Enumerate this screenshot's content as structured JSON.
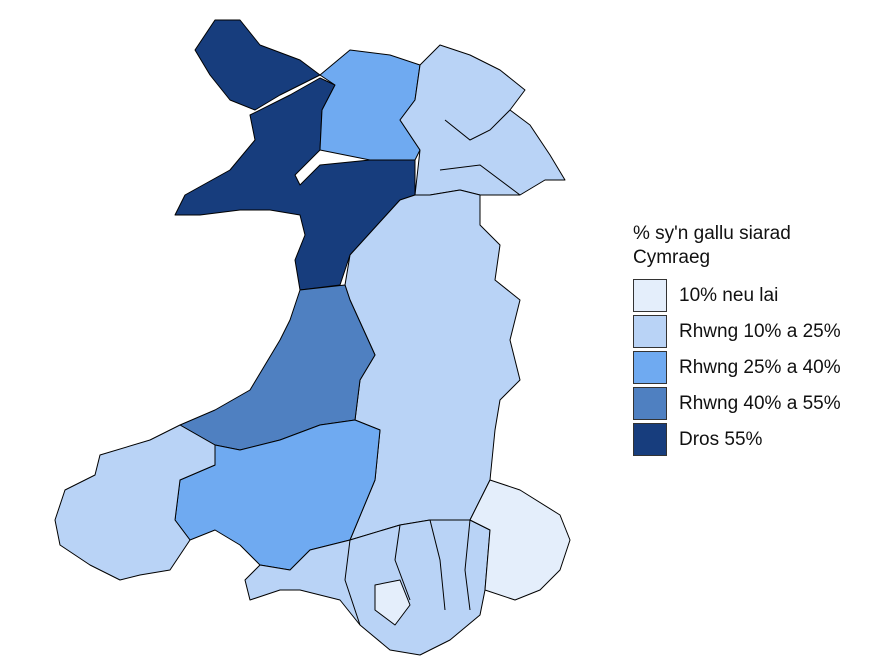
{
  "legend": {
    "title": "% sy'n gallu siarad Cymraeg",
    "items": [
      {
        "label": "10% neu lai",
        "color": "#e4eefb"
      },
      {
        "label": "Rhwng 10% a 25%",
        "color": "#b9d3f6"
      },
      {
        "label": "Rhwng 25% a 40%",
        "color": "#6faaf1"
      },
      {
        "label": "Rhwng 40% a 55%",
        "color": "#4f80c1"
      },
      {
        "label": "Dros 55%",
        "color": "#173d7d"
      }
    ]
  }
}
